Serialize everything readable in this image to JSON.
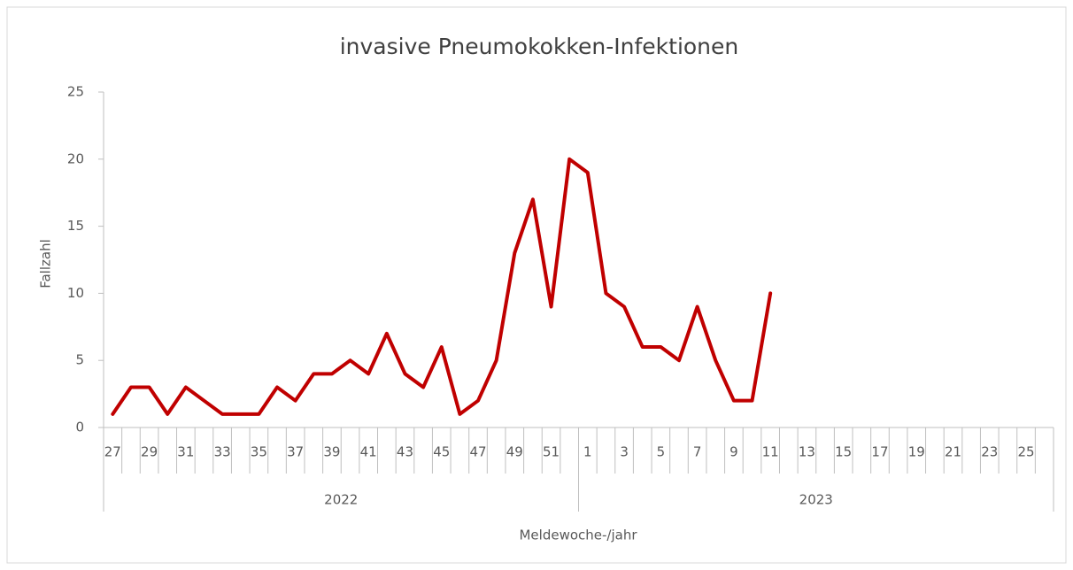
{
  "chart_data": {
    "type": "line",
    "title": "invasive Pneumokokken-Infektionen",
    "y_label": "Fallzahl",
    "x_label": "Meldewoche-/jahr",
    "group_labels": [
      "2022",
      "2023"
    ],
    "categories": [
      "27",
      null,
      "29",
      null,
      "31",
      null,
      "33",
      null,
      "35",
      null,
      "37",
      null,
      "39",
      null,
      "41",
      null,
      "43",
      null,
      "45",
      null,
      "47",
      null,
      "49",
      null,
      "51",
      null,
      "1",
      null,
      "3",
      null,
      "5",
      null,
      "7",
      null,
      "9",
      null,
      "11",
      null,
      "13",
      null,
      "15",
      null,
      "17",
      null,
      "19",
      null,
      "21",
      null,
      "23",
      null,
      "25",
      null
    ],
    "series": [
      {
        "color": "#c00000",
        "values": [
          1,
          3,
          3,
          1,
          3,
          2,
          1,
          1,
          1,
          3,
          2,
          4,
          4,
          5,
          4,
          7,
          4,
          3,
          6,
          1,
          2,
          5,
          13,
          17,
          9,
          20,
          19,
          10,
          9,
          6,
          6,
          5,
          9,
          5,
          2,
          2,
          10,
          null,
          null,
          null,
          null,
          null,
          null,
          null,
          null,
          null,
          null,
          null,
          null,
          null,
          null,
          null
        ]
      }
    ],
    "ylim": [
      0,
      25
    ],
    "yticks": [
      0,
      5,
      10,
      15,
      20,
      25
    ]
  }
}
